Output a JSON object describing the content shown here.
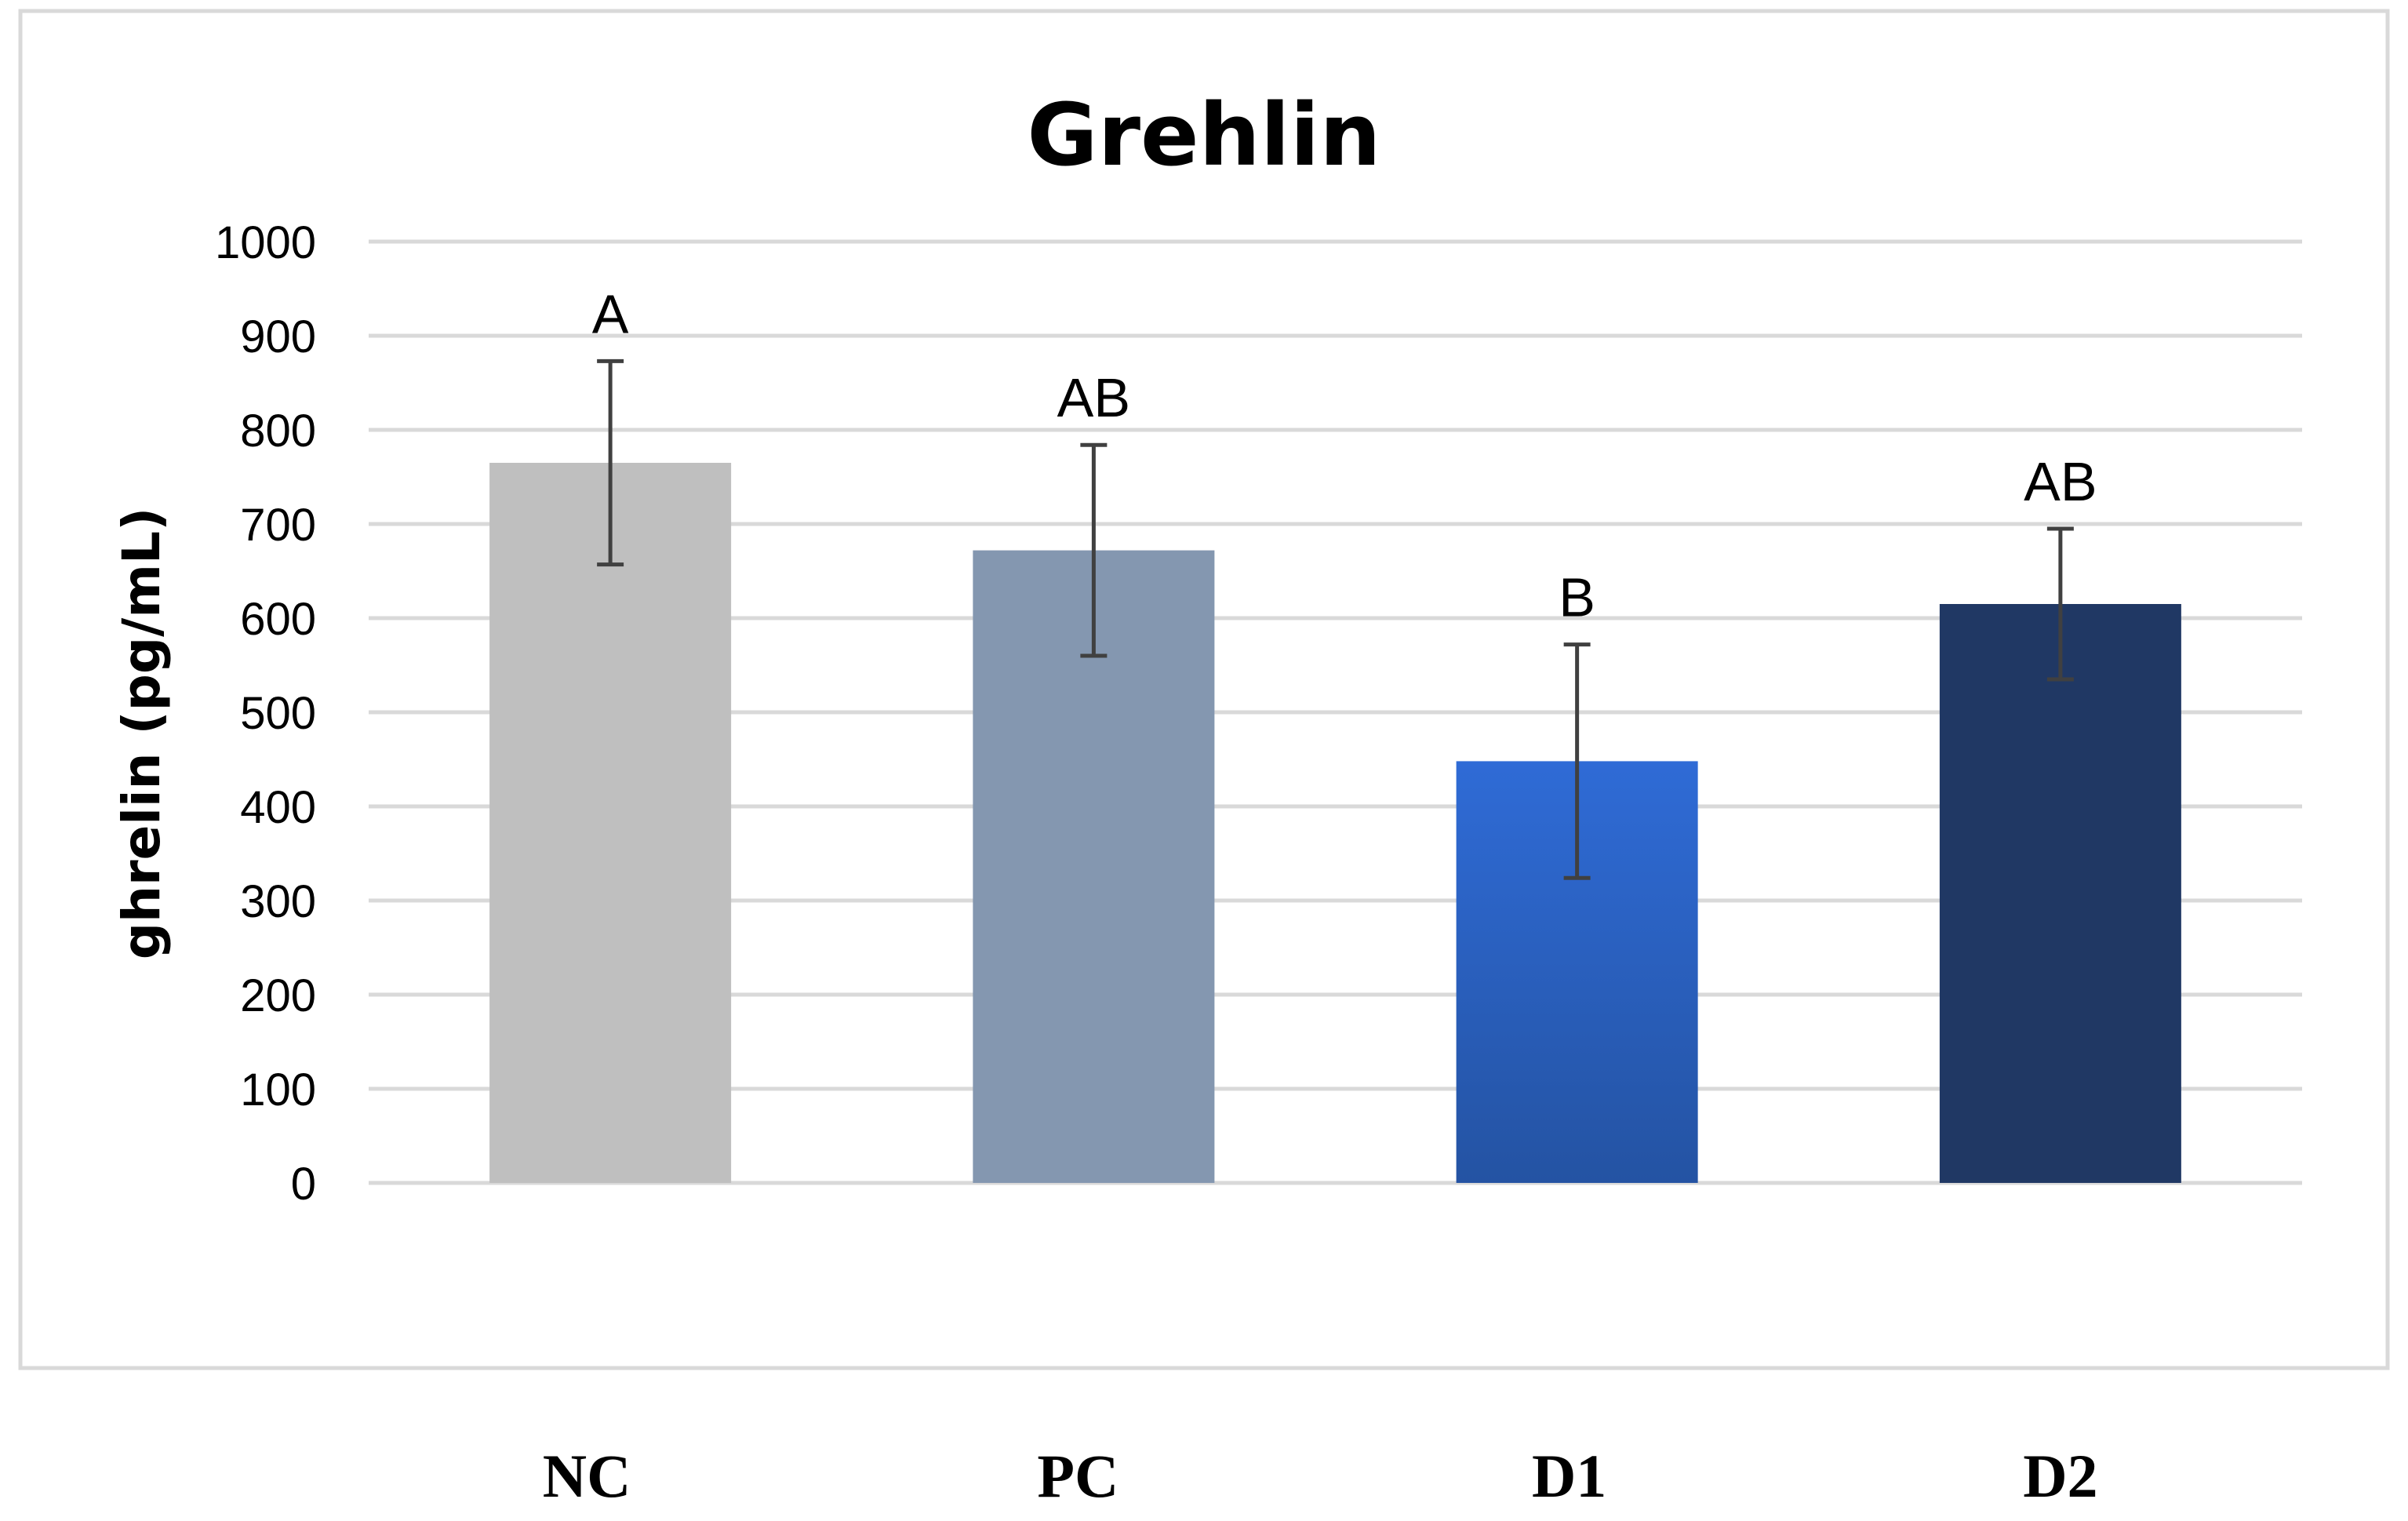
{
  "chart_data": {
    "type": "bar",
    "title": "Grehlin",
    "ylabel": "ghrelin (pg/mL)",
    "xlabel": "",
    "ylim": [
      0,
      1000
    ],
    "yticks": [
      "0",
      "100",
      "200",
      "300",
      "400",
      "500",
      "600",
      "700",
      "800",
      "900",
      "1000"
    ],
    "grid": true,
    "legend": "none",
    "categories": [
      "NC",
      "PC",
      "D1",
      "D2"
    ],
    "values": [
      765,
      672,
      448,
      615
    ],
    "errors": [
      108,
      112,
      124,
      80
    ],
    "significance": [
      "A",
      "AB",
      "B",
      "AB"
    ],
    "colors": [
      "#bfbfbf",
      "#8497b0",
      "#2f6bd6",
      "#203864"
    ]
  }
}
